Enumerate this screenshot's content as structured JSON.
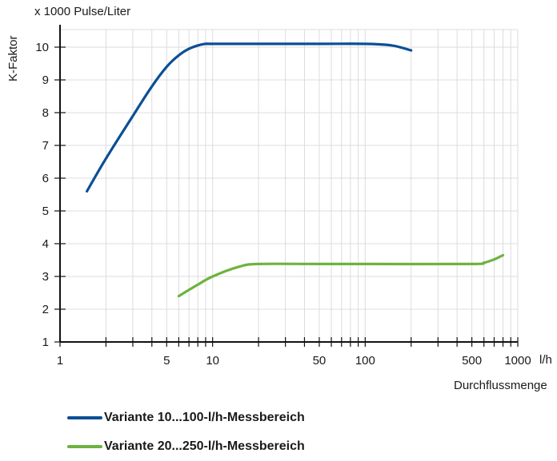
{
  "chart_data": {
    "type": "line",
    "x_scale": "log",
    "y_unit_label": "x 1000 Pulse/Liter",
    "ylabel": "K-Faktor",
    "xlabel": "Durchflussmenge",
    "x_unit": "l/h",
    "xlim": [
      1,
      1000
    ],
    "ylim": [
      1,
      10.5
    ],
    "grid": true,
    "legend_position": "bottom",
    "x_ticks": [
      "1",
      "5",
      "10",
      "50",
      "100",
      "500",
      "1000"
    ],
    "y_ticks": [
      "1",
      "2",
      "3",
      "4",
      "5",
      "6",
      "7",
      "8",
      "9",
      "10"
    ],
    "series": [
      {
        "name": "Variante 10...100-l/h-Messbereich",
        "color": "#0b4f95",
        "x": [
          1.5,
          2,
          3,
          4,
          5,
          6,
          7,
          8,
          9,
          10,
          20,
          50,
          100,
          150,
          200
        ],
        "y": [
          5.6,
          6.6,
          7.9,
          8.8,
          9.4,
          9.75,
          9.95,
          10.05,
          10.1,
          10.1,
          10.1,
          10.1,
          10.1,
          10.05,
          9.9
        ]
      },
      {
        "name": "Variante 20...250-l/h-Messbereich",
        "color": "#6cb33f",
        "x": [
          6,
          8,
          10,
          15,
          20,
          50,
          100,
          500,
          600,
          700,
          800
        ],
        "y": [
          2.4,
          2.75,
          3.0,
          3.3,
          3.38,
          3.38,
          3.38,
          3.38,
          3.42,
          3.52,
          3.65
        ]
      }
    ]
  }
}
